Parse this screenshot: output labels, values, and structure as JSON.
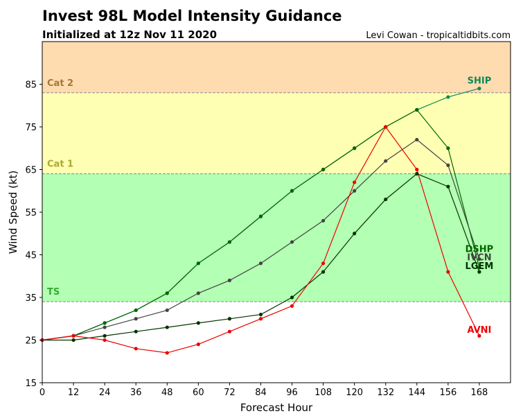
{
  "chart_data": {
    "type": "line",
    "title": "Invest 98L Model Intensity Guidance",
    "subtitle": "Initialized at 12z Nov 11 2020",
    "credit": "Levi Cowan - tropicaltidbits.com",
    "xlabel": "Forecast Hour",
    "ylabel": "Wind Speed (kt)",
    "xlim": [
      0,
      180
    ],
    "ylim": [
      15,
      95
    ],
    "x_ticks": [
      0,
      12,
      24,
      36,
      48,
      60,
      72,
      84,
      96,
      108,
      120,
      132,
      144,
      156,
      168
    ],
    "y_ticks": [
      15,
      25,
      35,
      45,
      55,
      65,
      75,
      85
    ],
    "grid": false,
    "bands": [
      {
        "label": "",
        "from": 15,
        "to": 34,
        "color": "#ffffff",
        "label_color": "#000000",
        "line_color": ""
      },
      {
        "label": "TS",
        "from": 34,
        "to": 64,
        "color": "#b3ffb3",
        "label_color": "#33aa33",
        "line_color": "#888888"
      },
      {
        "label": "Cat 1",
        "from": 64,
        "to": 83,
        "color": "#ffffb3",
        "label_color": "#aaaa33",
        "line_color": "#888888"
      },
      {
        "label": "Cat 2",
        "from": 83,
        "to": 95,
        "color": "#ffdcb0",
        "label_color": "#a8763a",
        "line_color": "#888888"
      }
    ],
    "series": [
      {
        "name": "SHIP",
        "color": "#118855",
        "label_value": 86,
        "x": [
          0,
          12,
          24,
          36,
          48,
          60,
          72,
          84,
          96,
          108,
          120,
          132,
          144,
          156,
          168
        ],
        "y": [
          25,
          26,
          29,
          32,
          36,
          43,
          48,
          54,
          60,
          65,
          70,
          75,
          79,
          82,
          84
        ]
      },
      {
        "name": "DSHP",
        "color": "#006600",
        "label_value": 46.5,
        "x": [
          0,
          12,
          24,
          36,
          48,
          60,
          72,
          84,
          96,
          108,
          120,
          132,
          144,
          156,
          168
        ],
        "y": [
          25,
          26,
          29,
          32,
          36,
          43,
          48,
          54,
          60,
          65,
          70,
          75,
          79,
          70,
          42
        ]
      },
      {
        "name": "IVCN",
        "color": "#444444",
        "label_value": 44.5,
        "x": [
          0,
          12,
          24,
          36,
          48,
          60,
          72,
          84,
          96,
          108,
          120,
          132,
          144,
          156,
          168
        ],
        "y": [
          25,
          26,
          28,
          30,
          32,
          36,
          39,
          43,
          48,
          53,
          60,
          67,
          72,
          66,
          44
        ]
      },
      {
        "name": "LGEM",
        "color": "#003300",
        "label_value": 42.5,
        "x": [
          0,
          12,
          24,
          36,
          48,
          60,
          72,
          84,
          96,
          108,
          120,
          132,
          144,
          156,
          168
        ],
        "y": [
          25,
          25,
          26,
          27,
          28,
          29,
          30,
          31,
          35,
          41,
          50,
          58,
          64,
          61,
          41
        ]
      },
      {
        "name": "AVNI",
        "color": "#ee0000",
        "label_value": 27.5,
        "x": [
          0,
          12,
          24,
          36,
          48,
          60,
          72,
          84,
          96,
          108,
          120,
          132,
          144,
          156,
          168
        ],
        "y": [
          25,
          26,
          25,
          23,
          22,
          24,
          27,
          30,
          33,
          43,
          62,
          75,
          65,
          41,
          26
        ]
      }
    ]
  }
}
